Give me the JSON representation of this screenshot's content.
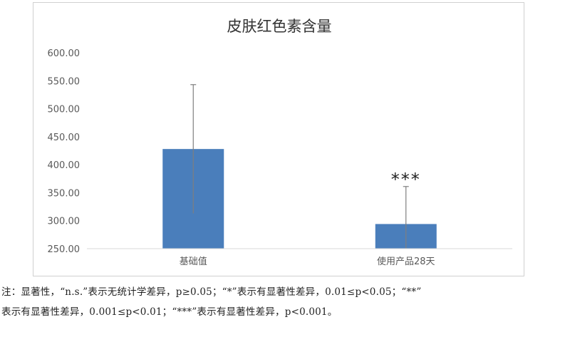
{
  "chart_data": {
    "type": "bar",
    "title": "皮肤红色素含量",
    "categories": [
      "基础值",
      "使用产品28天"
    ],
    "values": [
      428,
      294
    ],
    "error_bars": [
      {
        "low": 313,
        "high": 543
      },
      {
        "low": 250,
        "high": 361
      }
    ],
    "annotations": [
      "",
      "***"
    ],
    "ylim": [
      250,
      600
    ],
    "yticks": [
      "600.00",
      "550.00",
      "500.00",
      "450.00",
      "400.00",
      "350.00",
      "300.00",
      "250.00"
    ],
    "xlabel": "",
    "ylabel": "",
    "grid": false,
    "bar_color": "#4a7ebb",
    "error_bar_color": "#7f7f7f"
  },
  "notes": {
    "line1": "注：显著性，“n.s.”表示无统计学差异，p≥0.05；“*”表示有显著性差异，0.01≤p<0.05；“**”",
    "line2": "表示有显著性差异，0.001≤p<0.01；“***”表示有显著性差异，p<0.001。"
  }
}
